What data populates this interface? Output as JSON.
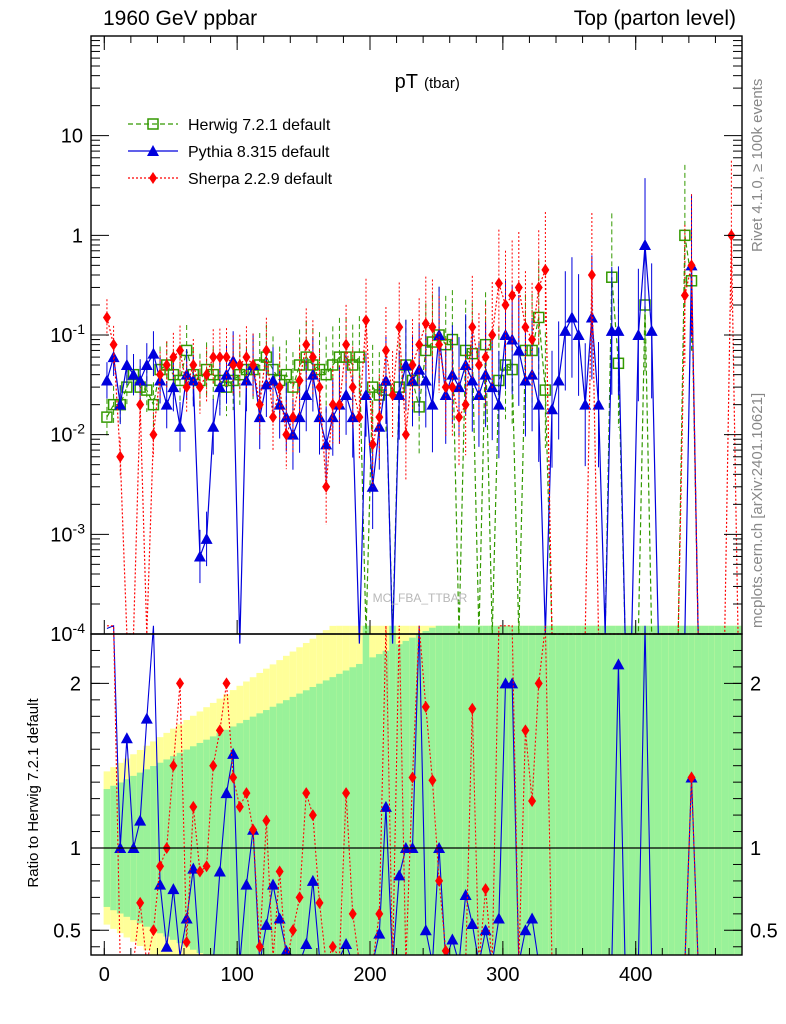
{
  "header": {
    "left": "1960 GeV ppbar",
    "right": "Top (parton level)"
  },
  "side_labels": {
    "rivet": "Rivet 4.1.0, ≥ 100k events",
    "mcplots": "mcplots.cern.ch [arXiv:2401.10621]"
  },
  "watermark": "MC_FBA_TTBAR",
  "colors": {
    "herwig": "#339900",
    "pythia": "#0000dd",
    "sherpa": "#ff0000",
    "band_green": "#99f299",
    "band_yellow": "#ffff99"
  },
  "chart_data": {
    "type": "line",
    "title": "pT",
    "title_sub": "(tbar)",
    "xlabel": "",
    "xlim": [
      -10,
      480
    ],
    "xticks": [
      "0",
      "100",
      "200",
      "300",
      "400"
    ],
    "main": {
      "yscale": "log",
      "ylim": [
        0.0001,
        100
      ],
      "yticks": [
        "10^{-4}",
        "10^{-3}",
        "10^{-2}",
        "10^{-1}",
        "1",
        "10"
      ]
    },
    "ratio": {
      "ylabel": "Ratio to Herwig 7.2.1 default",
      "ylim": [
        0.35,
        2.3
      ],
      "yticks": [
        "0.5",
        "1",
        "2"
      ]
    },
    "legend": {
      "position": "top-left",
      "entries": [
        "Herwig 7.2.1 default",
        "Pythia 8.315 default",
        "Sherpa 2.2.9 default"
      ]
    },
    "x": [
      2,
      7,
      12,
      17,
      22,
      27,
      32,
      37,
      42,
      47,
      52,
      57,
      62,
      67,
      72,
      77,
      82,
      87,
      92,
      97,
      102,
      107,
      112,
      117,
      122,
      127,
      132,
      137,
      142,
      147,
      152,
      157,
      162,
      167,
      172,
      177,
      182,
      187,
      192,
      197,
      202,
      207,
      212,
      217,
      222,
      227,
      232,
      237,
      242,
      247,
      252,
      257,
      262,
      267,
      272,
      277,
      282,
      287,
      292,
      297,
      302,
      307,
      312,
      317,
      322,
      327,
      332,
      337,
      342,
      347,
      352,
      357,
      362,
      367,
      372,
      377,
      382,
      387,
      392,
      397,
      402,
      407,
      412,
      417,
      422,
      427,
      432,
      437,
      442,
      447,
      452,
      457,
      462,
      467,
      472,
      477
    ],
    "series": [
      {
        "name": "Herwig 7.2.1 default",
        "values": [
          0.015,
          0.02,
          0.02,
          0.03,
          0.04,
          0.03,
          0.028,
          0.02,
          0.045,
          0.05,
          0.04,
          0.035,
          0.07,
          0.04,
          0.035,
          0.045,
          0.04,
          0.035,
          0.03,
          0.035,
          0.04,
          0.045,
          0.045,
          0.05,
          0.06,
          0.045,
          0.035,
          0.04,
          0.03,
          0.05,
          0.06,
          0.05,
          0.045,
          0.04,
          0.05,
          0.06,
          0.06,
          0.05,
          0.06,
          0.0001,
          0.03,
          0.025,
          0.028,
          0.0001,
          0.03,
          0.05,
          0.035,
          0.019,
          0.07,
          0.085,
          0.1,
          0.08,
          0.09,
          0.0001,
          0.07,
          0.065,
          0.0001,
          0.08,
          0.0001,
          0.035,
          0.05,
          0.045,
          0.0001,
          0.07,
          0.07,
          0.15,
          0.028,
          0.0001,
          0.0001,
          0.0001,
          0.0001,
          0.0001,
          0.0001,
          0.0001,
          0.0001,
          0.0001,
          0.38,
          0.052,
          0.0001,
          0.0001,
          0.0001,
          0.2,
          0.0001,
          0.0001,
          0.0001,
          0.0001,
          0.0001,
          1.0,
          0.35,
          0.0001,
          0.0001,
          0.0001,
          0.0001,
          0.0001,
          0.0001,
          0.0001
        ]
      },
      {
        "name": "Pythia 8.315 default",
        "values": [
          0.035,
          0.06,
          0.02,
          0.05,
          0.04,
          0.035,
          0.05,
          0.065,
          0.035,
          0.02,
          0.03,
          0.012,
          0.04,
          0.035,
          0.0006,
          0.0009,
          0.012,
          0.03,
          0.04,
          0.055,
          5e-05,
          0.035,
          0.05,
          0.015,
          0.032,
          0.035,
          0.02,
          0.015,
          0.01,
          0.015,
          0.025,
          0.04,
          0.015,
          0.008,
          0.015,
          0.02,
          0.025,
          0.015,
          1e-05,
          0.025,
          0.003,
          0.012,
          0.035,
          5e-05,
          0.025,
          0.05,
          0.035,
          0.045,
          0.035,
          0.02,
          0.1,
          0.025,
          0.04,
          0.03,
          0.05,
          0.035,
          0.025,
          0.04,
          0.03,
          0.02,
          0.1,
          0.09,
          0.07,
          0.035,
          0.04,
          0.02,
          0.0001,
          0.018,
          0.035,
          0.11,
          0.15,
          0.1,
          0.02,
          0.15,
          0.02,
          0.0001,
          0.11,
          0.11,
          0.0001,
          0.0001,
          0.1,
          0.8,
          0.11,
          0.0001,
          0.0001,
          0.0001,
          0.0001,
          0.0001,
          0.5,
          0.0001,
          0.0001,
          0.0001,
          0.0001,
          0.0001,
          0.0001,
          0.0001
        ]
      },
      {
        "name": "Sherpa 2.2.9 default",
        "values": [
          0.15,
          0.08,
          0.006,
          0.0001,
          0.0001,
          0.02,
          0.0001,
          0.01,
          0.04,
          0.05,
          0.06,
          0.07,
          0.03,
          0.05,
          0.03,
          0.04,
          0.06,
          0.06,
          0.06,
          0.05,
          0.05,
          0.06,
          0.05,
          0.02,
          0.07,
          0.015,
          0.03,
          0.01,
          0.015,
          0.035,
          0.08,
          0.06,
          0.03,
          0.003,
          0.02,
          0.02,
          0.08,
          0.03,
          0.015,
          0.14,
          0.008,
          0.015,
          0.07,
          0.025,
          0.12,
          0.01,
          0.05,
          0.08,
          0.13,
          0.12,
          0.08,
          0.03,
          0.03,
          0.015,
          0.02,
          0.12,
          0.05,
          0.06,
          0.1,
          0.33,
          0.2,
          0.25,
          0.3,
          0.12,
          0.09,
          0.3,
          0.45,
          0.0001,
          0.0001,
          0.0001,
          0.0001,
          0.0001,
          0.0001,
          0.4,
          0.0001,
          0.0001,
          0.0001,
          0.0001,
          0.0001,
          0.0001,
          0.0001,
          0.0001,
          0.0001,
          0.0001,
          0.0001,
          0.0001,
          0.0001,
          0.25,
          0.5,
          0.0001,
          0.0001,
          0.0001,
          0.0001,
          0.0001,
          1.0,
          0.0001
        ]
      }
    ]
  }
}
